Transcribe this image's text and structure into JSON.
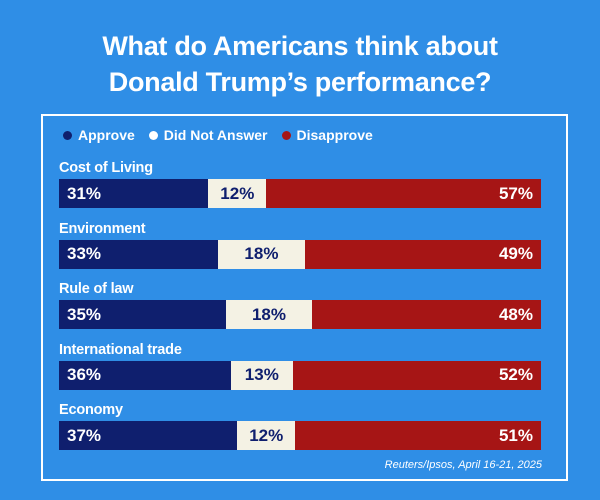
{
  "title_lines": [
    "What do Americans think about",
    "Donald Trump’s performance?"
  ],
  "colors": {
    "approve": "#0f1f6e",
    "noanswer": "#f4f2e4",
    "disapprove": "#a61515",
    "background": "#2f8ee6"
  },
  "legend": [
    {
      "label": "Approve",
      "color": "#0f1f6e"
    },
    {
      "label": "Did Not Answer",
      "color": "#ffffff"
    },
    {
      "label": "Disapprove",
      "color": "#a61515"
    }
  ],
  "source": "Reuters/Ipsos, April 16-21, 2025",
  "chart_data": {
    "type": "bar",
    "orientation": "horizontal",
    "stacked": true,
    "title": "What do Americans think about Donald Trump’s performance?",
    "categories": [
      "Cost of Living",
      "Environment",
      "Rule of law",
      "International trade",
      "Economy"
    ],
    "series": [
      {
        "name": "Approve",
        "values": [
          31,
          33,
          35,
          36,
          37
        ]
      },
      {
        "name": "Did Not Answer",
        "values": [
          12,
          18,
          18,
          13,
          12
        ]
      },
      {
        "name": "Disapprove",
        "values": [
          57,
          49,
          48,
          52,
          51
        ]
      }
    ],
    "value_suffix": "%",
    "xlim": [
      0,
      100
    ],
    "legend_position": "top-left"
  }
}
